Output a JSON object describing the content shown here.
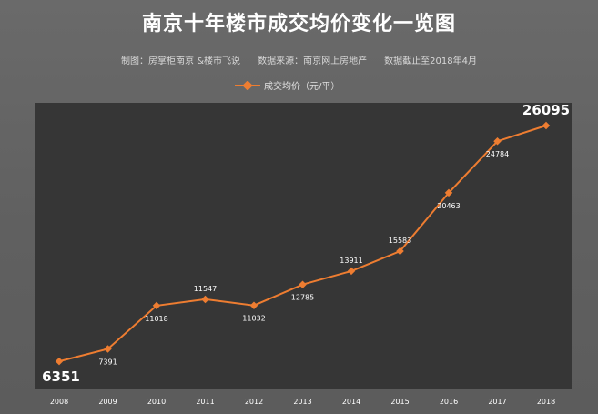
{
  "title": "南京十年楼市成交均价变化一览图",
  "subtitle": "制图：房掌柜南京 &楼市飞说      数据来源：南京网上房地产      数据截止至2018年4月",
  "colors": {
    "line": "#ee7d31",
    "plot_background": "#363636",
    "label": "#ffffff"
  },
  "chart_data": {
    "type": "line",
    "title": "南京十年楼市成交均价变化一览图",
    "xlabel": "",
    "ylabel": "",
    "categories": [
      "2008",
      "2009",
      "2010",
      "2011",
      "2012",
      "2013",
      "2014",
      "2015",
      "2016",
      "2017",
      "2018"
    ],
    "series": [
      {
        "name": "成交均价（元/平）",
        "values": [
          6351,
          7391,
          11018,
          11547,
          11032,
          12785,
          13911,
          15583,
          20463,
          24784,
          26095
        ]
      }
    ],
    "ylim": [
      4000,
      28000
    ],
    "grid": false,
    "legend": "top-center",
    "data_labels": true
  }
}
